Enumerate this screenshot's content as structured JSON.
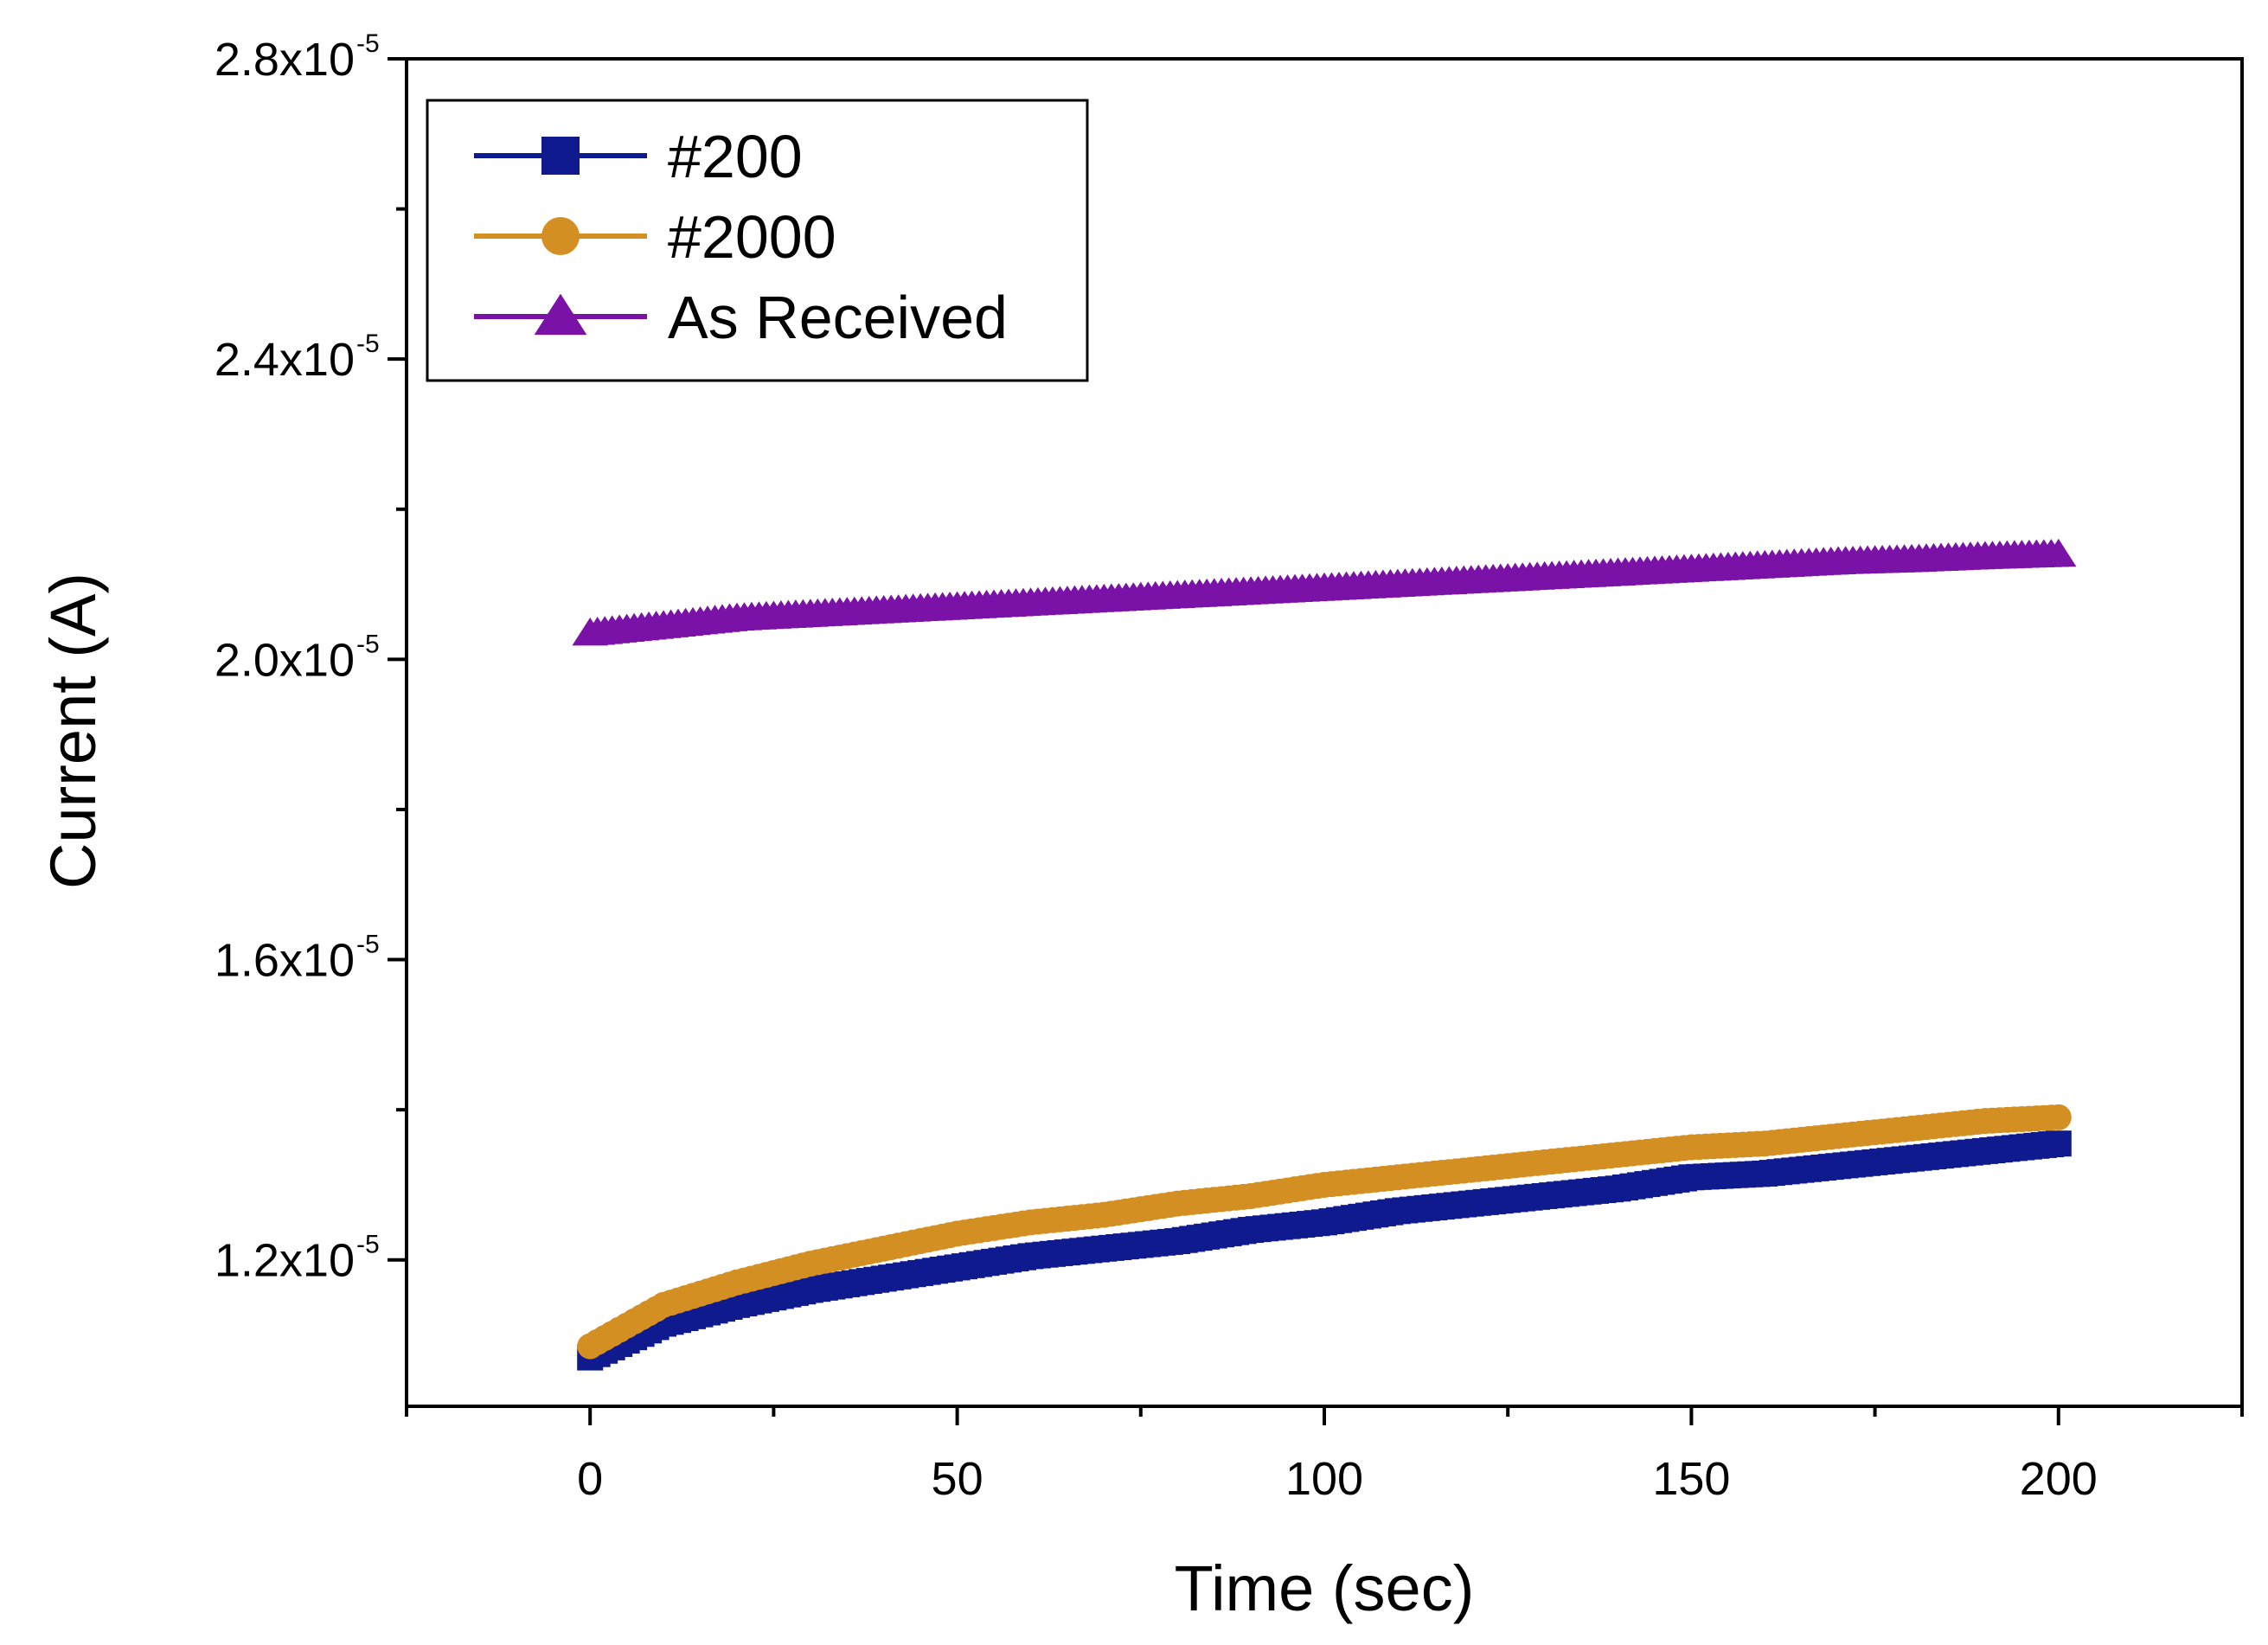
{
  "chart_data": {
    "type": "scatter",
    "title": "",
    "xlabel": "Time (sec)",
    "ylabel": "Current (A)",
    "xlim": [
      -25,
      225
    ],
    "ylim": [
      1.005e-05,
      2.8e-05
    ],
    "grid": false,
    "legend_position": "top-left",
    "x_ticks": [
      0,
      50,
      100,
      150,
      200
    ],
    "x_tick_labels": [
      "0",
      "50",
      "100",
      "150",
      "200"
    ],
    "y_ticks": [
      1.2e-05,
      1.6e-05,
      2e-05,
      2.4e-05,
      2.8e-05
    ],
    "y_tick_mantissas": [
      "1.2x10",
      "1.6x10",
      "2.0x10",
      "2.4x10",
      "2.8x10"
    ],
    "y_tick_exponent": "-5",
    "series": [
      {
        "name": "#200",
        "color": "#0f1a8f",
        "marker": "square",
        "x": [
          0,
          10,
          20,
          30,
          40,
          50,
          60,
          70,
          80,
          90,
          100,
          110,
          120,
          130,
          140,
          150,
          160,
          170,
          180,
          190,
          200
        ],
        "y": [
          1.07e-05,
          1.115e-05,
          1.14e-05,
          1.16e-05,
          1.175e-05,
          1.19e-05,
          1.205e-05,
          1.215e-05,
          1.225e-05,
          1.24e-05,
          1.25e-05,
          1.265e-05,
          1.275e-05,
          1.285e-05,
          1.295e-05,
          1.31e-05,
          1.315e-05,
          1.325e-05,
          1.335e-05,
          1.345e-05,
          1.355e-05
        ]
      },
      {
        "name": "#2000",
        "color": "#d48f22",
        "marker": "circle",
        "x": [
          0,
          10,
          20,
          30,
          40,
          50,
          60,
          70,
          80,
          90,
          100,
          110,
          120,
          130,
          140,
          150,
          160,
          170,
          180,
          190,
          200
        ],
        "y": [
          1.085e-05,
          1.14e-05,
          1.17e-05,
          1.195e-05,
          1.215e-05,
          1.235e-05,
          1.25e-05,
          1.26e-05,
          1.275e-05,
          1.285e-05,
          1.3e-05,
          1.31e-05,
          1.32e-05,
          1.33e-05,
          1.34e-05,
          1.35e-05,
          1.355e-05,
          1.365e-05,
          1.375e-05,
          1.385e-05,
          1.39e-05
        ]
      },
      {
        "name": "As Received",
        "color": "#7a12a8",
        "marker": "triangle",
        "x": [
          0,
          10,
          20,
          30,
          40,
          50,
          60,
          70,
          80,
          90,
          100,
          110,
          120,
          130,
          140,
          150,
          160,
          170,
          180,
          190,
          200
        ],
        "y": [
          2.035e-05,
          2.045e-05,
          2.055e-05,
          2.06e-05,
          2.065e-05,
          2.07e-05,
          2.075e-05,
          2.08e-05,
          2.085e-05,
          2.09e-05,
          2.095e-05,
          2.1e-05,
          2.105e-05,
          2.11e-05,
          2.115e-05,
          2.12e-05,
          2.125e-05,
          2.13e-05,
          2.133e-05,
          2.137e-05,
          2.14e-05
        ]
      }
    ]
  }
}
